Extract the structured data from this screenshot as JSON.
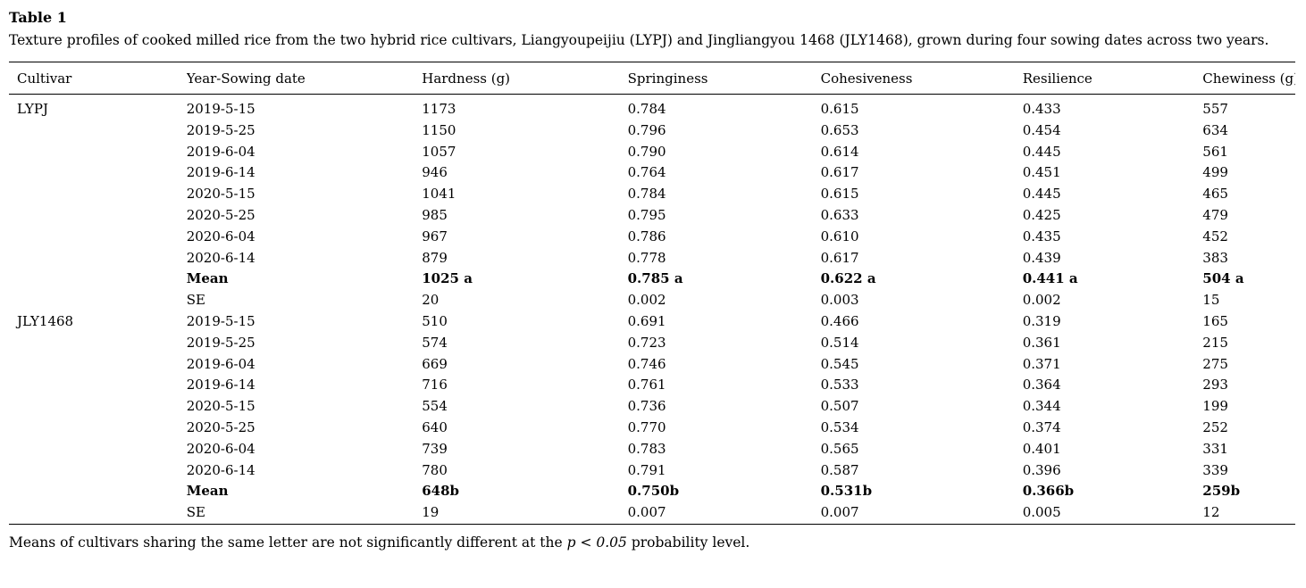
{
  "table": {
    "label": "Table 1",
    "caption": "Texture profiles of cooked milled rice from the two hybrid rice cultivars, Liangyoupeijiu (LYPJ) and Jingliangyou 1468 (JLY1468), grown during four sowing dates across two years.",
    "columns": [
      "Cultivar",
      "Year-Sowing date",
      "Hardness (g)",
      "Springiness",
      "Cohesiveness",
      "Resilience",
      "Chewiness (g)"
    ],
    "rows": [
      {
        "cells": [
          "LYPJ",
          "2019-5-15",
          "1173",
          "0.784",
          "0.615",
          "0.433",
          "557"
        ],
        "bold": false
      },
      {
        "cells": [
          "",
          "2019-5-25",
          "1150",
          "0.796",
          "0.653",
          "0.454",
          "634"
        ],
        "bold": false
      },
      {
        "cells": [
          "",
          "2019-6-04",
          "1057",
          "0.790",
          "0.614",
          "0.445",
          "561"
        ],
        "bold": false
      },
      {
        "cells": [
          "",
          "2019-6-14",
          "946",
          "0.764",
          "0.617",
          "0.451",
          "499"
        ],
        "bold": false
      },
      {
        "cells": [
          "",
          "2020-5-15",
          "1041",
          "0.784",
          "0.615",
          "0.445",
          "465"
        ],
        "bold": false
      },
      {
        "cells": [
          "",
          "2020-5-25",
          "985",
          "0.795",
          "0.633",
          "0.425",
          "479"
        ],
        "bold": false
      },
      {
        "cells": [
          "",
          "2020-6-04",
          "967",
          "0.786",
          "0.610",
          "0.435",
          "452"
        ],
        "bold": false
      },
      {
        "cells": [
          "",
          "2020-6-14",
          "879",
          "0.778",
          "0.617",
          "0.439",
          "383"
        ],
        "bold": false
      },
      {
        "cells": [
          "",
          "Mean",
          "1025 a",
          "0.785 a",
          "0.622 a",
          "0.441 a",
          "504 a"
        ],
        "bold": true
      },
      {
        "cells": [
          "",
          "SE",
          "20",
          "0.002",
          "0.003",
          "0.002",
          "15"
        ],
        "bold": false
      },
      {
        "cells": [
          "JLY1468",
          "2019-5-15",
          "510",
          "0.691",
          "0.466",
          "0.319",
          "165"
        ],
        "bold": false
      },
      {
        "cells": [
          "",
          "2019-5-25",
          "574",
          "0.723",
          "0.514",
          "0.361",
          "215"
        ],
        "bold": false
      },
      {
        "cells": [
          "",
          "2019-6-04",
          "669",
          "0.746",
          "0.545",
          "0.371",
          "275"
        ],
        "bold": false
      },
      {
        "cells": [
          "",
          "2019-6-14",
          "716",
          "0.761",
          "0.533",
          "0.364",
          "293"
        ],
        "bold": false
      },
      {
        "cells": [
          "",
          "2020-5-15",
          "554",
          "0.736",
          "0.507",
          "0.344",
          "199"
        ],
        "bold": false
      },
      {
        "cells": [
          "",
          "2020-5-25",
          "640",
          "0.770",
          "0.534",
          "0.374",
          "252"
        ],
        "bold": false
      },
      {
        "cells": [
          "",
          "2020-6-04",
          "739",
          "0.783",
          "0.565",
          "0.401",
          "331"
        ],
        "bold": false
      },
      {
        "cells": [
          "",
          "2020-6-14",
          "780",
          "0.791",
          "0.587",
          "0.396",
          "339"
        ],
        "bold": false
      },
      {
        "cells": [
          "",
          "Mean",
          "648b",
          "0.750b",
          "0.531b",
          "0.366b",
          "259b"
        ],
        "bold": true
      },
      {
        "cells": [
          "",
          "SE",
          "19",
          "0.007",
          "0.007",
          "0.005",
          "12"
        ],
        "bold": false
      }
    ],
    "column_widths": [
      "13.8%",
      "18.3%",
      "16%",
      "15%",
      "15.7%",
      "14%",
      "7.2%"
    ],
    "footnote": {
      "pre": "Means of cultivars sharing the same letter are not significantly different at the ",
      "italic": "p < 0.05",
      "post": " probability level."
    }
  }
}
